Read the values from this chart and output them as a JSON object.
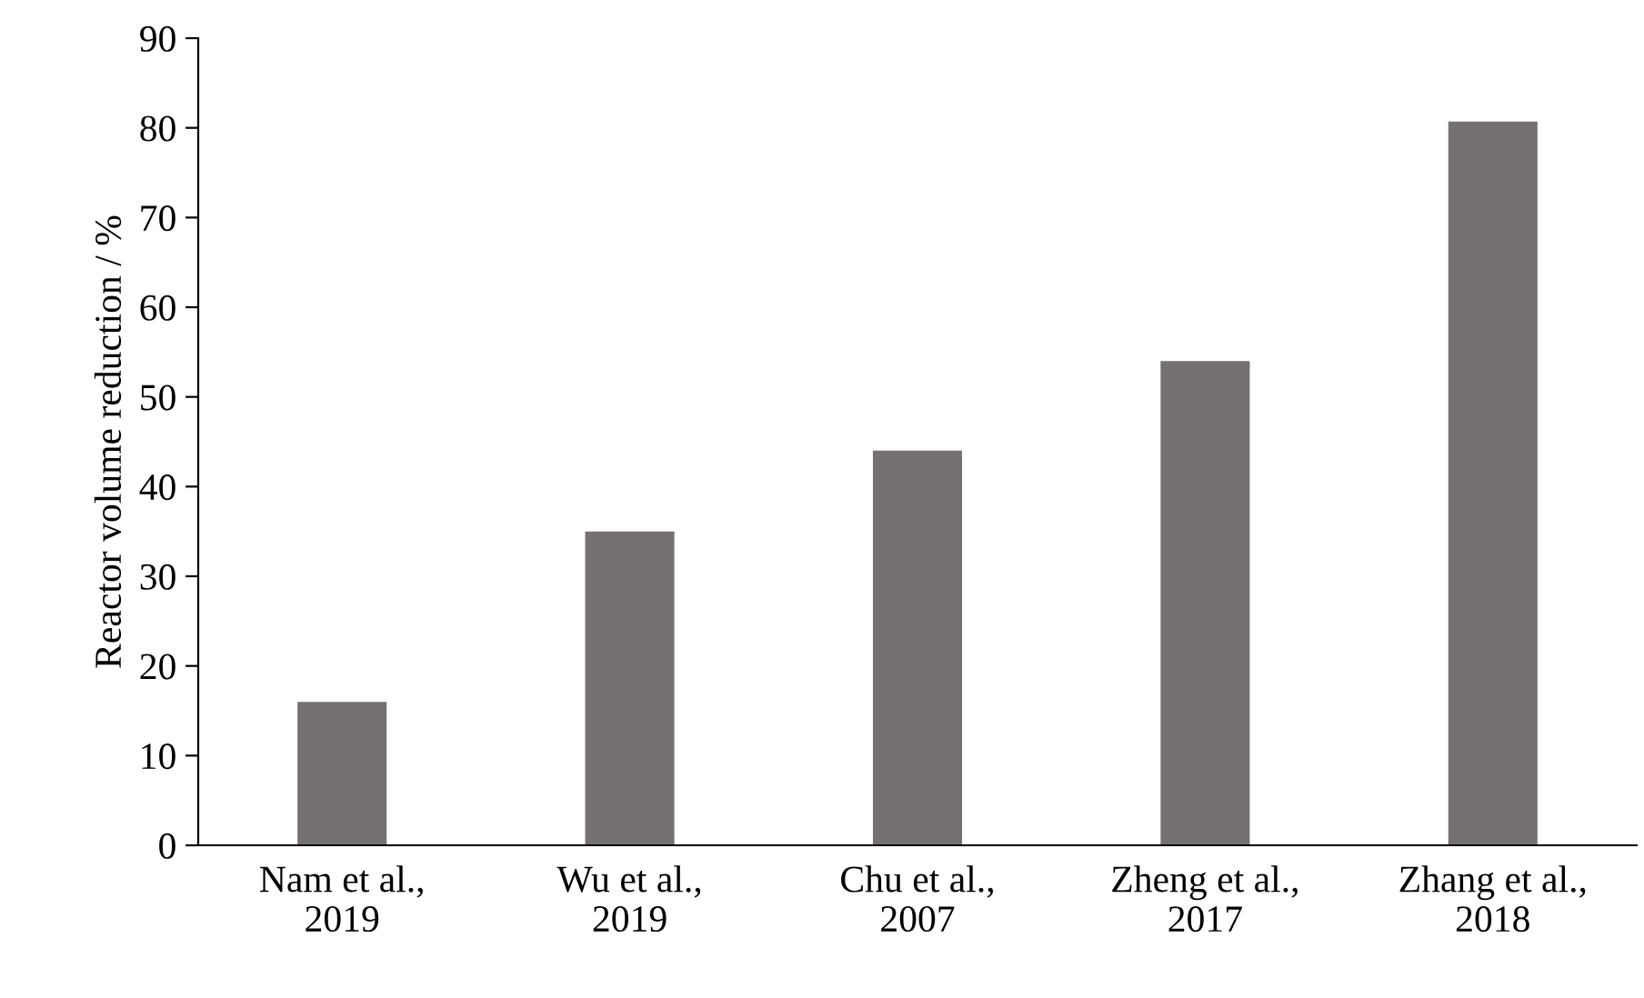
{
  "chart_data": {
    "type": "bar",
    "ylabel": "Reactor volume reduction / %",
    "categories": [
      "Nam et al.,\n2019",
      "Wu et al.,\n2019",
      "Chu et al.,\n2007",
      "Zheng et al.,\n2017",
      "Zhang et al.,\n2018"
    ],
    "values": [
      16,
      35,
      44,
      54,
      80.7
    ],
    "color": "#757170",
    "ylim": [
      0,
      90
    ],
    "yticks": [
      0,
      10,
      20,
      30,
      40,
      50,
      60,
      70,
      80,
      90
    ],
    "grid": false,
    "legend": false
  }
}
